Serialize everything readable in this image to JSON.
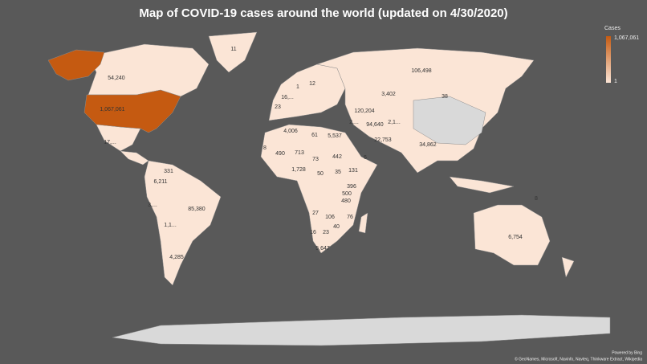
{
  "title": "Map of COVID-19 cases around the world (updated on 4/30/2020)",
  "legend": {
    "title": "Cases",
    "max": {
      "value": 1067061,
      "label": "1,067,061"
    },
    "min": 1,
    "low_color": "#fbe5d6",
    "high_color": "#c55a11"
  },
  "regions": [
    {
      "label": "11"
    },
    {
      "label": "54,240"
    },
    {
      "label": "1,067,061"
    },
    {
      "label": "17,..."
    },
    {
      "label": "331"
    },
    {
      "label": "6,211"
    },
    {
      "label": "3,..."
    },
    {
      "label": "85,380"
    },
    {
      "label": "1,1..."
    },
    {
      "label": "4,285"
    },
    {
      "label": "16,..."
    },
    {
      "label": "1"
    },
    {
      "label": "12"
    },
    {
      "label": "23"
    },
    {
      "label": "120,204"
    },
    {
      "label": "106,498"
    },
    {
      "label": "3,402"
    },
    {
      "label": "38"
    },
    {
      "label": "2,..."
    },
    {
      "label": "94,640"
    },
    {
      "label": "2,1..."
    },
    {
      "label": "34,862"
    },
    {
      "label": "22,753"
    },
    {
      "label": "4,006"
    },
    {
      "label": "61"
    },
    {
      "label": "5,537"
    },
    {
      "label": "8"
    },
    {
      "label": "490"
    },
    {
      "label": "713"
    },
    {
      "label": "73"
    },
    {
      "label": "442"
    },
    {
      "label": "6"
    },
    {
      "label": "1,728"
    },
    {
      "label": "50"
    },
    {
      "label": "35"
    },
    {
      "label": "131"
    },
    {
      "label": "396"
    },
    {
      "label": "500"
    },
    {
      "label": "480"
    },
    {
      "label": "27"
    },
    {
      "label": "106"
    },
    {
      "label": "76"
    },
    {
      "label": "40"
    },
    {
      "label": "16"
    },
    {
      "label": "23"
    },
    {
      "label": "5,647"
    },
    {
      "label": "6,754"
    },
    {
      "label": "8"
    }
  ],
  "footer": {
    "powered_by": "Powered by Bing",
    "attribution": "© GeoNames, Microsoft, Navinfo, Navteq, Thinkware Extract, Wikipedia"
  }
}
